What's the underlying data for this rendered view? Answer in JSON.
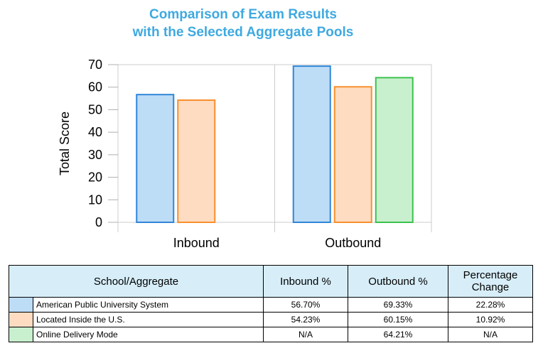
{
  "title_line1": "Comparison of Exam Results",
  "title_line2": "with the Selected Aggregate Pools",
  "chart_data": {
    "type": "bar",
    "categories": [
      "Inbound",
      "Outbound"
    ],
    "series": [
      {
        "name": "American Public University System",
        "values": [
          56.7,
          69.33
        ],
        "fill": "#bddcf6",
        "stroke": "#2f86d8"
      },
      {
        "name": "Located Inside the U.S.",
        "values": [
          54.23,
          60.15
        ],
        "fill": "#fedcc2",
        "stroke": "#f8902e"
      },
      {
        "name": "Online Delivery Mode",
        "values": [
          null,
          64.21
        ],
        "fill": "#c8f0ce",
        "stroke": "#3cc24e"
      }
    ],
    "ylabel": "Total Score",
    "xlabel": "",
    "ylim": [
      0,
      70
    ],
    "yticks": [
      0,
      10,
      20,
      30,
      40,
      50,
      60,
      70
    ],
    "legend": "none",
    "grid": false
  },
  "table": {
    "headers": [
      "School/Aggregate",
      "Inbound %",
      "Outbound %",
      "Percentage Change"
    ],
    "rows": [
      {
        "name": "American Public University System",
        "color": "#bddcf6",
        "inbound": "56.70%",
        "outbound": "69.33%",
        "change": "22.28%"
      },
      {
        "name": "Located Inside the U.S.",
        "color": "#fedcc2",
        "inbound": "54.23%",
        "outbound": "60.15%",
        "change": "10.92%"
      },
      {
        "name": "Online Delivery Mode",
        "color": "#c8f0ce",
        "inbound": "N/A",
        "outbound": "64.21%",
        "change": "N/A"
      }
    ]
  }
}
